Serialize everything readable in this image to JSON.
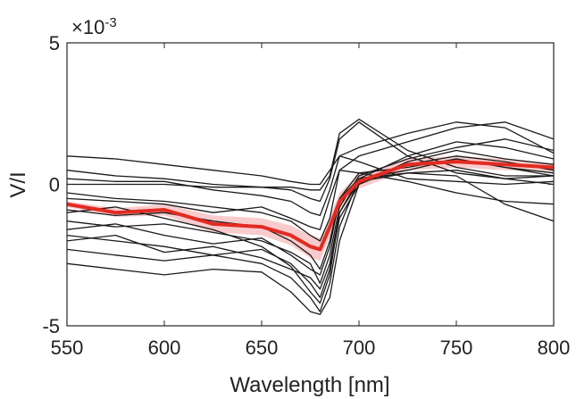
{
  "chart_data": {
    "type": "line",
    "xlabel": "Wavelength [nm]",
    "ylabel": "V/I",
    "y_multiplier_label": "×10",
    "y_multiplier_exponent": "-3",
    "xlim": [
      550,
      800
    ],
    "ylim": [
      -5,
      5
    ],
    "xticks": [
      "550",
      "600",
      "650",
      "700",
      "750",
      "800"
    ],
    "yticks": [
      "5",
      "0",
      "-5"
    ],
    "grid": false,
    "legend": "none",
    "colors": {
      "individual_traces": "#1a1a1a",
      "mean": "#e32b22",
      "mean_band": "#f2a3a3"
    },
    "x": [
      550,
      575,
      600,
      625,
      650,
      665,
      675,
      680,
      685,
      690,
      700,
      725,
      750,
      775,
      800
    ],
    "mean": {
      "values": [
        -0.7,
        -1.0,
        -0.9,
        -1.4,
        -1.5,
        -1.8,
        -2.2,
        -2.3,
        -1.5,
        -0.6,
        0.1,
        0.7,
        0.8,
        0.7,
        0.6
      ],
      "band_halfwidth": [
        0.1,
        0.15,
        0.2,
        0.3,
        0.3,
        0.35,
        0.4,
        0.4,
        0.35,
        0.3,
        0.25,
        0.2,
        0.2,
        0.2,
        0.15
      ]
    },
    "series": [
      {
        "values": [
          1.0,
          0.9,
          0.7,
          0.5,
          0.3,
          0.1,
          0.0,
          0.0,
          0.5,
          1.0,
          0.8,
          0.2,
          0.1,
          0.0,
          0.1
        ]
      },
      {
        "values": [
          0.5,
          0.3,
          0.2,
          0.0,
          -0.1,
          -0.2,
          -0.5,
          -0.6,
          0.2,
          1.6,
          2.2,
          1.0,
          0.4,
          0.2,
          0.3
        ]
      },
      {
        "values": [
          0.0,
          0.0,
          0.0,
          -0.1,
          -0.1,
          -0.1,
          -0.2,
          -0.2,
          0.3,
          1.8,
          2.3,
          1.2,
          0.6,
          0.3,
          0.3
        ]
      },
      {
        "values": [
          -0.5,
          -0.6,
          -0.7,
          -1.0,
          -0.8,
          -1.2,
          -1.5,
          -1.6,
          -0.5,
          0.5,
          0.4,
          0.1,
          -0.3,
          -0.6,
          -0.7
        ]
      },
      {
        "values": [
          -0.9,
          -1.1,
          -1.0,
          -1.3,
          -1.5,
          -2.0,
          -2.5,
          -3.0,
          -2.0,
          -0.5,
          0.2,
          0.4,
          0.3,
          -0.7,
          -1.3
        ]
      },
      {
        "values": [
          -1.3,
          -1.5,
          -1.4,
          -1.7,
          -2.0,
          -2.4,
          -2.8,
          -3.5,
          -2.5,
          -0.8,
          0.3,
          0.9,
          1.3,
          1.6,
          1.2
        ]
      },
      {
        "values": [
          -1.8,
          -2.0,
          -2.2,
          -2.5,
          -2.3,
          -2.8,
          -3.5,
          -4.0,
          -3.0,
          -1.2,
          0.0,
          0.8,
          1.2,
          0.9,
          0.7
        ]
      },
      {
        "values": [
          -2.3,
          -2.5,
          -2.7,
          -2.5,
          -2.8,
          -3.3,
          -4.0,
          -4.5,
          -3.5,
          -1.5,
          0.2,
          1.0,
          1.5,
          1.3,
          0.9
        ]
      },
      {
        "values": [
          -2.8,
          -3.0,
          -3.2,
          -3.0,
          -3.1,
          -3.8,
          -4.5,
          -4.6,
          -4.0,
          -2.0,
          0.0,
          0.7,
          1.0,
          0.8,
          0.5
        ]
      },
      {
        "values": [
          -0.3,
          -0.5,
          -0.6,
          -0.8,
          -1.0,
          -1.3,
          -1.8,
          -2.0,
          -1.2,
          0.5,
          1.0,
          1.5,
          2.0,
          2.2,
          1.6
        ]
      },
      {
        "values": [
          -1.6,
          -1.4,
          -1.8,
          -2.1,
          -1.9,
          -2.5,
          -3.0,
          -3.2,
          -2.2,
          -0.5,
          0.4,
          0.6,
          0.9,
          0.6,
          0.4
        ]
      },
      {
        "values": [
          0.2,
          0.1,
          0.1,
          -0.2,
          -0.4,
          -0.6,
          -1.0,
          -1.1,
          -0.2,
          1.0,
          1.3,
          1.8,
          2.2,
          2.0,
          1.1
        ]
      },
      {
        "values": [
          -1.0,
          -0.8,
          -1.2,
          -1.6,
          -2.2,
          -2.9,
          -3.8,
          -4.2,
          -3.2,
          -1.0,
          0.1,
          0.4,
          0.5,
          0.2,
          0.0
        ]
      },
      {
        "values": [
          -2.0,
          -1.8,
          -2.4,
          -2.2,
          -2.6,
          -3.0,
          -3.3,
          -3.7,
          -2.8,
          -1.0,
          0.2,
          0.5,
          0.9,
          0.6,
          0.3
        ]
      }
    ]
  }
}
